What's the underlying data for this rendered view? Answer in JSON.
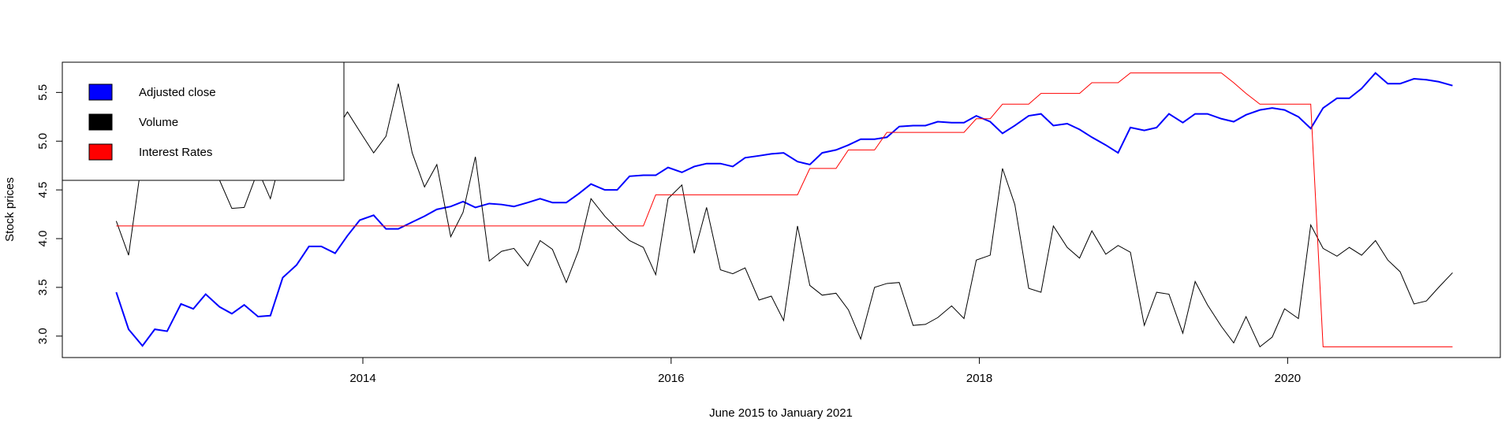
{
  "chart_data": {
    "type": "line",
    "y_label": "Stock prices",
    "x_label": "June 2015 to January 2021",
    "legend": "topleft",
    "xlim": [
      2012.05,
      2021.38
    ],
    "xticks": [
      2014,
      2016,
      2018,
      2020
    ],
    "ylim": [
      2.78,
      5.81
    ],
    "yticks": [
      {
        "value": 3,
        "label": "3.0"
      },
      3.5,
      {
        "value": 4,
        "label": "4.0"
      },
      4.5,
      {
        "value": 5,
        "label": "5.0"
      },
      5.5
    ],
    "x": [
      2012.4,
      2012.48,
      2012.57,
      2012.65,
      2012.73,
      2012.82,
      2012.9,
      2012.98,
      2013.07,
      2013.15,
      2013.23,
      2013.32,
      2013.4,
      2013.48,
      2013.57,
      2013.65,
      2013.73,
      2013.82,
      2013.9,
      2013.98,
      2014.07,
      2014.15,
      2014.23,
      2014.32,
      2014.4,
      2014.48,
      2014.57,
      2014.65,
      2014.73,
      2014.82,
      2014.9,
      2014.98,
      2015.07,
      2015.15,
      2015.23,
      2015.32,
      2015.4,
      2015.48,
      2015.57,
      2015.65,
      2015.73,
      2015.82,
      2015.9,
      2015.98,
      2016.07,
      2016.15,
      2016.23,
      2016.32,
      2016.4,
      2016.48,
      2016.57,
      2016.65,
      2016.73,
      2016.82,
      2016.9,
      2016.98,
      2017.07,
      2017.15,
      2017.23,
      2017.32,
      2017.4,
      2017.48,
      2017.57,
      2017.65,
      2017.73,
      2017.82,
      2017.9,
      2017.98,
      2018.07,
      2018.15,
      2018.23,
      2018.32,
      2018.4,
      2018.48,
      2018.57,
      2018.65,
      2018.73,
      2018.82,
      2018.9,
      2018.98,
      2019.07,
      2019.15,
      2019.23,
      2019.32,
      2019.4,
      2019.48,
      2019.57,
      2019.65,
      2019.73,
      2019.82,
      2019.9,
      2019.98,
      2020.07,
      2020.15,
      2020.23,
      2020.32,
      2020.4,
      2020.48,
      2020.57,
      2020.65,
      2020.73,
      2020.82,
      2020.9,
      2020.98,
      2021.07
    ],
    "series": [
      {
        "name": "Adjusted close",
        "color": "#0000ff",
        "width": 2,
        "values": [
          3.45,
          3.07,
          2.9,
          3.07,
          3.05,
          3.33,
          3.28,
          3.43,
          3.3,
          3.23,
          3.32,
          3.2,
          3.21,
          3.6,
          3.73,
          3.92,
          3.92,
          3.85,
          4.03,
          4.19,
          4.24,
          4.1,
          4.1,
          4.17,
          4.23,
          4.3,
          4.33,
          4.38,
          4.32,
          4.36,
          4.35,
          4.33,
          4.37,
          4.41,
          4.37,
          4.37,
          4.46,
          4.56,
          4.5,
          4.5,
          4.64,
          4.65,
          4.65,
          4.73,
          4.68,
          4.74,
          4.77,
          4.77,
          4.74,
          4.83,
          4.85,
          4.87,
          4.88,
          4.79,
          4.76,
          4.88,
          4.91,
          4.96,
          5.02,
          5.02,
          5.04,
          5.15,
          5.16,
          5.16,
          5.2,
          5.19,
          5.19,
          5.26,
          5.2,
          5.08,
          5.16,
          5.26,
          5.28,
          5.16,
          5.18,
          5.12,
          5.04,
          4.96,
          4.88,
          5.14,
          5.11,
          5.14,
          5.28,
          5.19,
          5.28,
          5.28,
          5.23,
          5.2,
          5.27,
          5.32,
          5.34,
          5.32,
          5.25,
          5.13,
          5.34,
          5.44,
          5.44,
          5.54,
          5.7,
          5.59,
          5.59,
          5.64,
          5.63,
          5.61,
          5.57
        ]
      },
      {
        "name": "Volume",
        "color": "#000000",
        "width": 1,
        "values": [
          4.18,
          3.83,
          4.85,
          5.0,
          4.9,
          4.8,
          4.75,
          4.7,
          4.6,
          4.31,
          4.32,
          4.7,
          4.41,
          4.9,
          5.1,
          5.0,
          5.2,
          5.1,
          5.3,
          5.1,
          4.88,
          5.05,
          5.59,
          4.88,
          4.53,
          4.76,
          4.02,
          4.27,
          4.84,
          3.77,
          3.87,
          3.9,
          3.72,
          3.98,
          3.89,
          3.55,
          3.88,
          4.41,
          4.23,
          4.1,
          3.98,
          3.91,
          3.63,
          4.41,
          4.55,
          3.85,
          4.32,
          3.68,
          3.64,
          3.7,
          3.37,
          3.41,
          3.16,
          4.13,
          3.52,
          3.42,
          3.44,
          3.27,
          2.97,
          3.5,
          3.54,
          3.55,
          3.11,
          3.12,
          3.19,
          3.31,
          3.18,
          3.78,
          3.83,
          4.72,
          4.35,
          3.49,
          3.45,
          4.13,
          3.91,
          3.8,
          4.08,
          3.84,
          3.93,
          3.86,
          3.11,
          3.45,
          3.43,
          3.03,
          3.56,
          3.32,
          3.1,
          2.93,
          3.2,
          2.89,
          2.99,
          3.28,
          3.18,
          4.14,
          3.9,
          3.82,
          3.91,
          3.83,
          3.98,
          3.78,
          3.66,
          3.33,
          3.36,
          3.5,
          3.65
        ]
      },
      {
        "name": "Interest Rates",
        "color": "#ff0000",
        "width": 1,
        "values": [
          4.13,
          4.13,
          4.13,
          4.13,
          4.13,
          4.13,
          4.13,
          4.13,
          4.13,
          4.13,
          4.13,
          4.13,
          4.13,
          4.13,
          4.13,
          4.13,
          4.13,
          4.13,
          4.13,
          4.13,
          4.13,
          4.13,
          4.13,
          4.13,
          4.13,
          4.13,
          4.13,
          4.13,
          4.13,
          4.13,
          4.13,
          4.13,
          4.13,
          4.13,
          4.13,
          4.13,
          4.13,
          4.13,
          4.13,
          4.13,
          4.13,
          4.13,
          4.45,
          4.45,
          4.45,
          4.45,
          4.45,
          4.45,
          4.45,
          4.45,
          4.45,
          4.45,
          4.45,
          4.45,
          4.72,
          4.72,
          4.72,
          4.91,
          4.91,
          4.91,
          5.09,
          5.09,
          5.09,
          5.09,
          5.09,
          5.09,
          5.09,
          5.23,
          5.23,
          5.38,
          5.38,
          5.38,
          5.49,
          5.49,
          5.49,
          5.49,
          5.6,
          5.6,
          5.6,
          5.7,
          5.7,
          5.7,
          5.7,
          5.7,
          5.7,
          5.7,
          5.7,
          5.6,
          5.49,
          5.38,
          5.38,
          5.38,
          5.38,
          5.38,
          2.89,
          2.89,
          2.89,
          2.89,
          2.89,
          2.89,
          2.89,
          2.89,
          2.89,
          2.89,
          2.89
        ]
      }
    ]
  }
}
